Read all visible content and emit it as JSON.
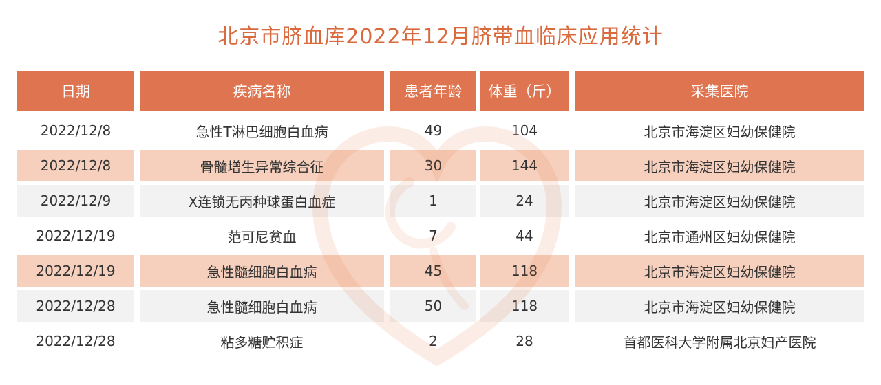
{
  "title": "北京市脐血库2022年12月脐带血临床应用统计",
  "colors": {
    "title": "#d96a3e",
    "header_bg": "#df7550",
    "header_text": "#ffffff",
    "row_peach": "#f6d0bd",
    "row_gray": "#f2f2f2",
    "cell_text": "#333333"
  },
  "watermark_icon": "heart-logo-icon",
  "headers": {
    "date": "日期",
    "disease": "疾病名称",
    "age": "患者年龄",
    "weight": "体重（斤）",
    "hospital": "采集医院"
  },
  "rows": [
    {
      "date": "2022/12/8",
      "disease": "急性T淋巴细胞白血病",
      "age": "49",
      "weight": "104",
      "hospital": "北京市海淀区妇幼保健院"
    },
    {
      "date": "2022/12/8",
      "disease": "骨髓增生异常综合征",
      "age": "30",
      "weight": "144",
      "hospital": "北京市海淀区妇幼保健院"
    },
    {
      "date": "2022/12/9",
      "disease": "X连锁无丙种球蛋白血症",
      "age": "1",
      "weight": "24",
      "hospital": "北京市海淀区妇幼保健院"
    },
    {
      "date": "2022/12/19",
      "disease": "范可尼贫血",
      "age": "7",
      "weight": "44",
      "hospital": "北京市通州区妇幼保健院"
    },
    {
      "date": "2022/12/19",
      "disease": "急性髓细胞白血病",
      "age": "45",
      "weight": "118",
      "hospital": "北京市海淀区妇幼保健院"
    },
    {
      "date": "2022/12/28",
      "disease": "急性髓细胞白血病",
      "age": "50",
      "weight": "118",
      "hospital": "北京市海淀区妇幼保健院"
    },
    {
      "date": "2022/12/28",
      "disease": "粘多糖贮积症",
      "age": "2",
      "weight": "28",
      "hospital": "首都医科大学附属北京妇产医院"
    }
  ]
}
